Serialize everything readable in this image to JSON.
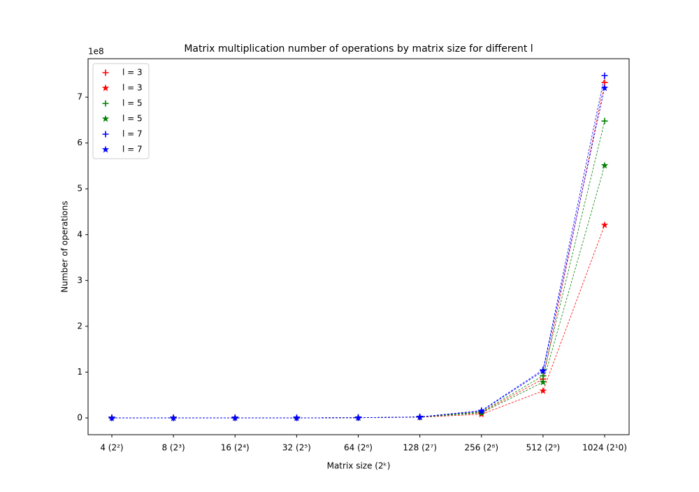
{
  "chart_data": {
    "type": "line",
    "title": "Matrix multiplication number of operations by matrix size for different l",
    "x_label": "Matrix size (2ᵏ)",
    "y_label": "Number of operations",
    "y_offset_label": "1e8",
    "categories": [
      "4 (2²)",
      "8 (2³)",
      "16 (2⁴)",
      "32 (2⁵)",
      "64 (2⁶)",
      "128 (2⁷)",
      "256 (2⁸)",
      "512 (2⁹)",
      "1024 (2¹0)"
    ],
    "series": [
      {
        "name": "l = 3",
        "color": "#ff0000",
        "marker": "plus",
        "values": [
          0,
          0.0002,
          0.0012,
          0.001,
          0.005,
          0.02,
          0.12,
          0.85,
          7.32
        ]
      },
      {
        "name": "l = 3",
        "color": "#ff0000",
        "marker": "star",
        "values": [
          0,
          0.0002,
          0.001,
          0.001,
          0.004,
          0.015,
          0.08,
          0.59,
          4.21
        ]
      },
      {
        "name": "l = 5",
        "color": "#008000",
        "marker": "plus",
        "values": [
          0,
          0.0002,
          0.0012,
          0.001,
          0.005,
          0.02,
          0.13,
          0.92,
          6.48
        ]
      },
      {
        "name": "l = 5",
        "color": "#008000",
        "marker": "star",
        "values": [
          0,
          0.0002,
          0.001,
          0.001,
          0.004,
          0.018,
          0.11,
          0.78,
          5.51
        ]
      },
      {
        "name": "l = 7",
        "color": "#0000ff",
        "marker": "plus",
        "values": [
          0,
          0.0002,
          0.0012,
          0.001,
          0.005,
          0.022,
          0.16,
          1.05,
          7.47
        ]
      },
      {
        "name": "l = 7",
        "color": "#0000ff",
        "marker": "star",
        "values": [
          0,
          0.0002,
          0.001,
          0.001,
          0.005,
          0.02,
          0.15,
          1.02,
          7.2
        ]
      }
    ],
    "ylim": [
      -0.366,
      7.84
    ],
    "yticks": [
      0,
      1,
      2,
      3,
      4,
      5,
      6,
      7
    ],
    "legend": "upper left"
  }
}
